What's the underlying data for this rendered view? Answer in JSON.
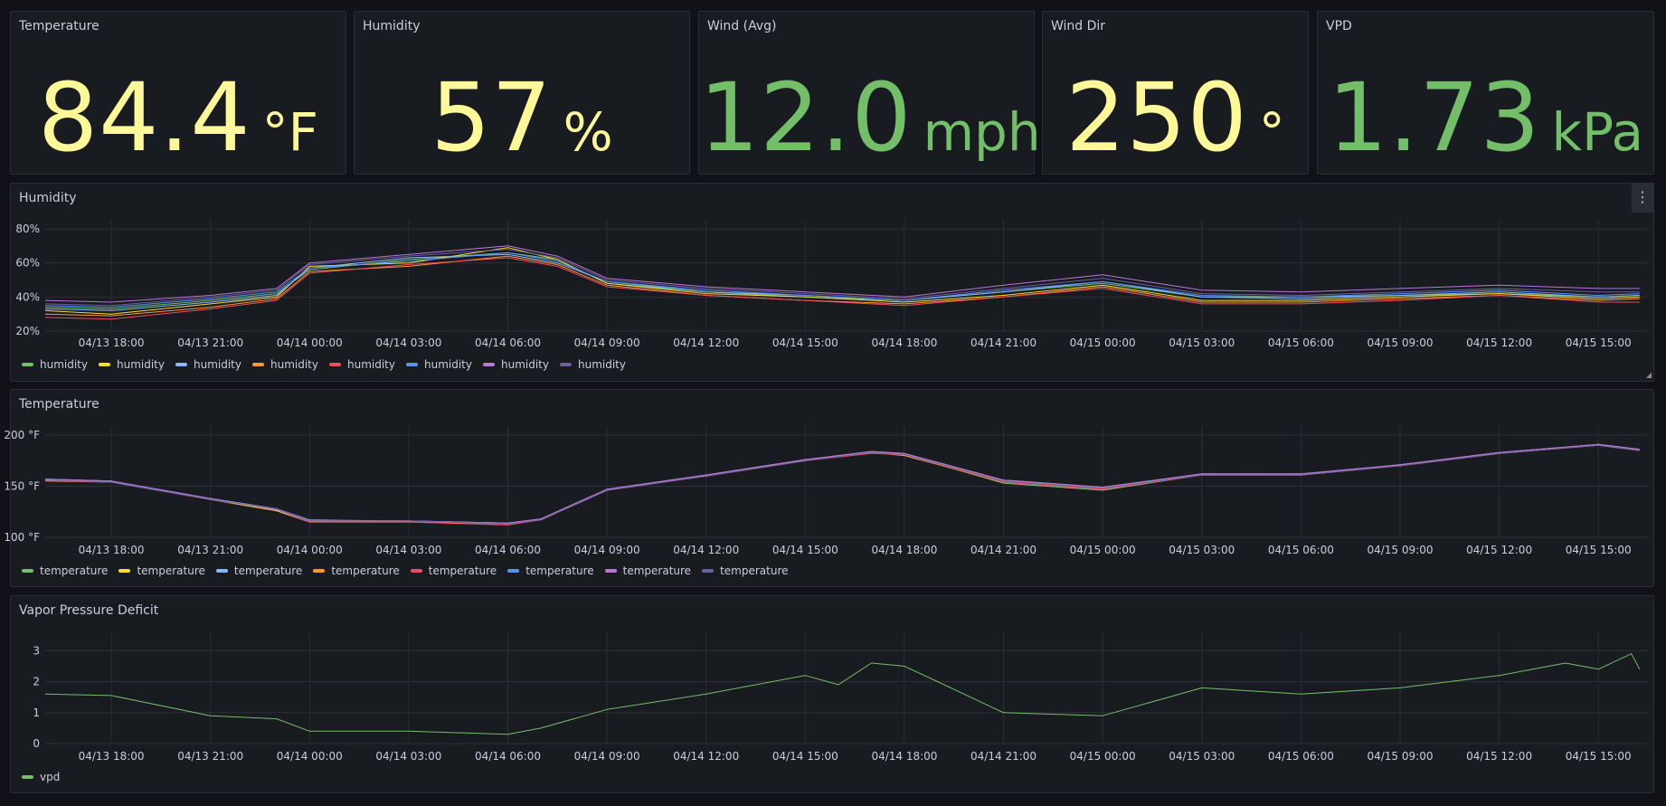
{
  "stats": [
    {
      "title": "Temperature",
      "value": "84.4",
      "unit": "°F",
      "color": "#fff899"
    },
    {
      "title": "Humidity",
      "value": "57",
      "unit": "%",
      "color": "#fff899"
    },
    {
      "title": "Wind (Avg)",
      "value": "12.0",
      "unit": "mph",
      "color": "#73bf69"
    },
    {
      "title": "Wind Dir",
      "value": "250",
      "unit": "°",
      "color": "#fff899"
    },
    {
      "title": "VPD",
      "value": "1.73",
      "unit": "kPa",
      "color": "#73bf69"
    }
  ],
  "x_tick_labels": [
    "04/13 18:00",
    "04/13 21:00",
    "04/14 00:00",
    "04/14 03:00",
    "04/14 06:00",
    "04/14 09:00",
    "04/14 12:00",
    "04/14 15:00",
    "04/14 18:00",
    "04/14 21:00",
    "04/15 00:00",
    "04/15 03:00",
    "04/15 06:00",
    "04/15 09:00",
    "04/15 12:00",
    "04/15 15:00"
  ],
  "series_colors": [
    "#73bf69",
    "#fade2a",
    "#8ab8ff",
    "#ff9830",
    "#f2495c",
    "#5794f2",
    "#b877d9",
    "#705da0"
  ],
  "humidity_panel": {
    "title": "Humidity",
    "menu_icon": "vertical-dots-icon"
  },
  "temperature_panel": {
    "title": "Temperature"
  },
  "vpd_panel": {
    "title": "Vapor Pressure Deficit"
  },
  "chart_data": [
    {
      "type": "line",
      "title": "Humidity",
      "x": [
        "04/13 16:00",
        "04/13 18:00",
        "04/13 21:00",
        "04/13 23:00",
        "04/14 00:00",
        "04/14 03:00",
        "04/14 06:00",
        "04/14 07:30",
        "04/14 09:00",
        "04/14 12:00",
        "04/14 15:00",
        "04/14 18:00",
        "04/14 21:00",
        "04/15 00:00",
        "04/15 03:00",
        "04/15 06:00",
        "04/15 09:00",
        "04/15 12:00",
        "04/15 15:00",
        "04/15 16:15"
      ],
      "ylim": [
        20,
        80
      ],
      "y_tick_labels": [
        "20%",
        "40%",
        "60%",
        "80%"
      ],
      "series": [
        {
          "name": "humidity",
          "values": [
            34,
            33,
            38,
            42,
            56,
            62,
            66,
            62,
            48,
            43,
            40,
            38,
            43,
            48,
            40,
            40,
            41,
            42,
            40,
            41
          ]
        },
        {
          "name": "humidity",
          "values": [
            32,
            30,
            36,
            40,
            58,
            60,
            69,
            62,
            48,
            42,
            40,
            37,
            41,
            47,
            38,
            38,
            40,
            42,
            39,
            40
          ]
        },
        {
          "name": "humidity",
          "values": [
            33,
            32,
            37,
            41,
            57,
            63,
            65,
            60,
            49,
            43,
            41,
            38,
            43,
            49,
            40,
            39,
            41,
            43,
            40,
            41
          ]
        },
        {
          "name": "humidity",
          "values": [
            30,
            29,
            34,
            39,
            55,
            58,
            64,
            59,
            47,
            41,
            38,
            36,
            40,
            46,
            37,
            37,
            39,
            41,
            38,
            39
          ]
        },
        {
          "name": "humidity",
          "values": [
            28,
            27,
            33,
            38,
            54,
            59,
            63,
            58,
            46,
            41,
            38,
            35,
            40,
            45,
            36,
            36,
            38,
            41,
            37,
            37
          ]
        },
        {
          "name": "humidity",
          "values": [
            35,
            34,
            39,
            43,
            57,
            61,
            66,
            61,
            49,
            44,
            41,
            38,
            44,
            49,
            41,
            40,
            42,
            44,
            41,
            42
          ]
        },
        {
          "name": "humidity",
          "values": [
            38,
            37,
            41,
            45,
            60,
            65,
            70,
            64,
            51,
            46,
            43,
            40,
            47,
            53,
            44,
            43,
            45,
            47,
            45,
            45
          ]
        },
        {
          "name": "humidity",
          "values": [
            36,
            35,
            40,
            44,
            59,
            64,
            68,
            63,
            50,
            45,
            42,
            39,
            45,
            51,
            42,
            41,
            43,
            45,
            43,
            43
          ]
        }
      ]
    },
    {
      "type": "line",
      "title": "Temperature",
      "x": [
        "04/13 16:00",
        "04/13 18:00",
        "04/13 21:00",
        "04/13 23:00",
        "04/14 00:00",
        "04/14 03:00",
        "04/14 06:00",
        "04/14 07:00",
        "04/14 09:00",
        "04/14 12:00",
        "04/14 15:00",
        "04/14 17:00",
        "04/14 18:00",
        "04/14 21:00",
        "04/15 00:00",
        "04/15 03:00",
        "04/15 06:00",
        "04/15 09:00",
        "04/15 12:00",
        "04/15 15:00",
        "04/15 16:15"
      ],
      "ylim": [
        100,
        200
      ],
      "y_tick_labels": [
        "100 °F",
        "150 °F",
        "200 °F"
      ],
      "series": [
        {
          "name": "temperature",
          "values": [
            157,
            154,
            138,
            128,
            116,
            116,
            114,
            118,
            147,
            160,
            175,
            183,
            181,
            153,
            146,
            161,
            161,
            170,
            182,
            190,
            185
          ]
        },
        {
          "name": "temperature",
          "values": [
            156,
            155,
            137,
            126,
            115,
            115,
            113,
            117,
            146,
            160,
            176,
            184,
            182,
            156,
            149,
            162,
            161,
            171,
            183,
            191,
            186
          ]
        },
        {
          "name": "temperature",
          "values": [
            157,
            155,
            138,
            128,
            117,
            116,
            114,
            118,
            147,
            161,
            176,
            183,
            181,
            155,
            148,
            162,
            162,
            170,
            183,
            190,
            185
          ]
        },
        {
          "name": "temperature",
          "values": [
            155,
            154,
            137,
            127,
            116,
            116,
            113,
            118,
            146,
            160,
            175,
            183,
            180,
            154,
            147,
            161,
            161,
            170,
            182,
            190,
            185
          ]
        },
        {
          "name": "temperature",
          "values": [
            156,
            154,
            138,
            127,
            115,
            115,
            112,
            117,
            146,
            160,
            175,
            182,
            181,
            154,
            147,
            161,
            161,
            170,
            182,
            190,
            185
          ]
        },
        {
          "name": "temperature",
          "values": [
            156,
            155,
            137,
            128,
            116,
            116,
            114,
            118,
            147,
            161,
            176,
            183,
            181,
            155,
            148,
            162,
            162,
            171,
            183,
            191,
            186
          ]
        },
        {
          "name": "temperature",
          "values": [
            157,
            155,
            138,
            127,
            116,
            116,
            114,
            118,
            147,
            161,
            176,
            184,
            182,
            156,
            149,
            162,
            162,
            171,
            183,
            191,
            186
          ]
        },
        {
          "name": "temperature",
          "values": [
            156,
            154,
            137,
            128,
            116,
            116,
            113,
            117,
            146,
            160,
            175,
            183,
            181,
            155,
            148,
            161,
            161,
            170,
            182,
            190,
            185
          ]
        }
      ]
    },
    {
      "type": "line",
      "title": "Vapor Pressure Deficit",
      "x": [
        "04/13 16:00",
        "04/13 18:00",
        "04/13 21:00",
        "04/13 23:00",
        "04/14 00:00",
        "04/14 03:00",
        "04/14 06:00",
        "04/14 07:00",
        "04/14 09:00",
        "04/14 12:00",
        "04/14 15:00",
        "04/14 16:00",
        "04/14 17:00",
        "04/14 18:00",
        "04/14 19:00",
        "04/14 21:00",
        "04/15 00:00",
        "04/15 03:00",
        "04/15 06:00",
        "04/15 09:00",
        "04/15 12:00",
        "04/15 14:00",
        "04/15 15:00",
        "04/15 16:00",
        "04/15 16:15"
      ],
      "ylim": [
        0,
        3.3
      ],
      "y_tick_labels": [
        "0",
        "1",
        "2",
        "3"
      ],
      "series": [
        {
          "name": "vpd",
          "values": [
            1.6,
            1.55,
            0.9,
            0.8,
            0.4,
            0.4,
            0.3,
            0.5,
            1.1,
            1.6,
            2.2,
            1.9,
            2.6,
            2.5,
            2.0,
            1.0,
            0.9,
            1.8,
            1.6,
            1.8,
            2.2,
            2.6,
            2.4,
            2.9,
            2.4
          ]
        }
      ]
    }
  ]
}
